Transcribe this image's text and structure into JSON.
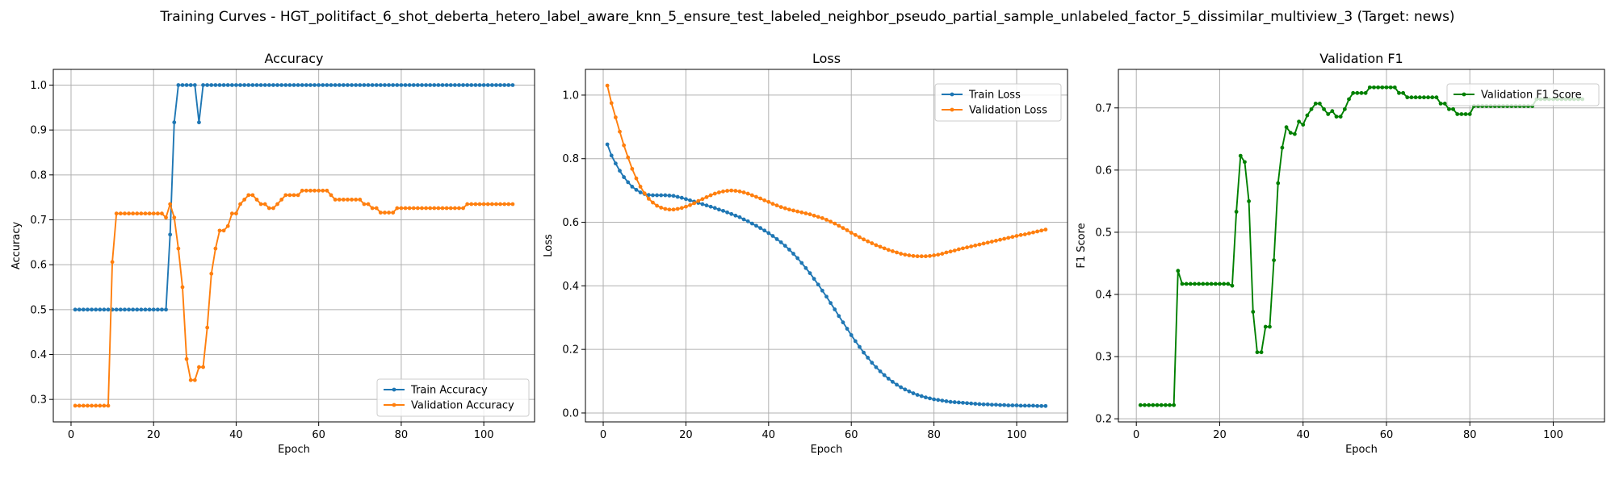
{
  "figure": {
    "title": "Training Curves - HGT_politifact_6_shot_deberta_hetero_label_aware_knn_5_ensure_test_labeled_neighbor_pseudo_partial_sample_unlabeled_factor_5_dissimilar_multiview_3 (Target: news)"
  },
  "chart_data": [
    {
      "type": "line",
      "title": "Accuracy",
      "xlabel": "Epoch",
      "ylabel": "Accuracy",
      "xlim": [
        -4.3,
        112.3
      ],
      "ylim": [
        0.25,
        1.035
      ],
      "xticks": [
        0,
        20,
        40,
        60,
        80,
        100
      ],
      "yticks": [
        0.3,
        0.4,
        0.5,
        0.6,
        0.7,
        0.8,
        0.9,
        1.0
      ],
      "ytick_labels": [
        "0.3",
        "0.4",
        "0.5",
        "0.6",
        "0.7",
        "0.8",
        "0.9",
        "1.0"
      ],
      "grid": true,
      "legend_position": "lower-right",
      "series": [
        {
          "name": "Train Accuracy",
          "color": "#1f77b4",
          "values": [
            0.5,
            0.5,
            0.5,
            0.5,
            0.5,
            0.5,
            0.5,
            0.5,
            0.5,
            0.5,
            0.5,
            0.5,
            0.5,
            0.5,
            0.5,
            0.5,
            0.5,
            0.5,
            0.5,
            0.5,
            0.5,
            0.5,
            0.5,
            0.667,
            0.917,
            1.0,
            1.0,
            1.0,
            1.0,
            1.0,
            0.917,
            1.0,
            1.0,
            1.0,
            1.0,
            1.0,
            1.0,
            1.0,
            1.0,
            1.0,
            1.0,
            1.0,
            1.0,
            1.0,
            1.0,
            1.0,
            1.0,
            1.0,
            1.0,
            1.0,
            1.0,
            1.0,
            1.0,
            1.0,
            1.0,
            1.0,
            1.0,
            1.0,
            1.0,
            1.0,
            1.0,
            1.0,
            1.0,
            1.0,
            1.0,
            1.0,
            1.0,
            1.0,
            1.0,
            1.0,
            1.0,
            1.0,
            1.0,
            1.0,
            1.0,
            1.0,
            1.0,
            1.0,
            1.0,
            1.0,
            1.0,
            1.0,
            1.0,
            1.0,
            1.0,
            1.0,
            1.0,
            1.0,
            1.0,
            1.0,
            1.0,
            1.0,
            1.0,
            1.0,
            1.0,
            1.0,
            1.0,
            1.0,
            1.0,
            1.0,
            1.0,
            1.0,
            1.0,
            1.0,
            1.0,
            1.0,
            1.0
          ]
        },
        {
          "name": "Validation Accuracy",
          "color": "#ff7f0e",
          "values": [
            0.286,
            0.286,
            0.286,
            0.286,
            0.286,
            0.286,
            0.286,
            0.286,
            0.286,
            0.606,
            0.714,
            0.714,
            0.714,
            0.714,
            0.714,
            0.714,
            0.714,
            0.714,
            0.714,
            0.714,
            0.714,
            0.714,
            0.705,
            0.735,
            0.705,
            0.636,
            0.55,
            0.39,
            0.343,
            0.343,
            0.372,
            0.372,
            0.46,
            0.58,
            0.636,
            0.676,
            0.676,
            0.686,
            0.714,
            0.714,
            0.735,
            0.745,
            0.755,
            0.755,
            0.745,
            0.735,
            0.735,
            0.726,
            0.726,
            0.735,
            0.745,
            0.755,
            0.755,
            0.755,
            0.755,
            0.765,
            0.765,
            0.765,
            0.765,
            0.765,
            0.765,
            0.765,
            0.755,
            0.745,
            0.745,
            0.745,
            0.745,
            0.745,
            0.745,
            0.745,
            0.735,
            0.735,
            0.726,
            0.726,
            0.716,
            0.716,
            0.716,
            0.716,
            0.726,
            0.726,
            0.726,
            0.726,
            0.726,
            0.726,
            0.726,
            0.726,
            0.726,
            0.726,
            0.726,
            0.726,
            0.726,
            0.726,
            0.726,
            0.726,
            0.726,
            0.735,
            0.735,
            0.735,
            0.735,
            0.735,
            0.735,
            0.735,
            0.735,
            0.735,
            0.735,
            0.735,
            0.735
          ]
        }
      ]
    },
    {
      "type": "line",
      "title": "Loss",
      "xlabel": "Epoch",
      "ylabel": "Loss",
      "xlim": [
        -4.3,
        112.3
      ],
      "ylim": [
        -0.028,
        1.081
      ],
      "xticks": [
        0,
        20,
        40,
        60,
        80,
        100
      ],
      "yticks": [
        0.0,
        0.2,
        0.4,
        0.6,
        0.8,
        1.0
      ],
      "ytick_labels": [
        "0.0",
        "0.2",
        "0.4",
        "0.6",
        "0.8",
        "1.0"
      ],
      "grid": true,
      "legend_position": "top-right",
      "series": [
        {
          "name": "Train Loss",
          "color": "#1f77b4",
          "values": [
            0.845,
            0.81,
            0.785,
            0.762,
            0.742,
            0.726,
            0.712,
            0.702,
            0.694,
            0.689,
            0.686,
            0.685,
            0.685,
            0.685,
            0.685,
            0.684,
            0.683,
            0.68,
            0.677,
            0.673,
            0.669,
            0.665,
            0.661,
            0.657,
            0.653,
            0.649,
            0.645,
            0.64,
            0.636,
            0.631,
            0.626,
            0.621,
            0.616,
            0.609,
            0.603,
            0.596,
            0.589,
            0.582,
            0.574,
            0.566,
            0.557,
            0.547,
            0.537,
            0.526,
            0.514,
            0.501,
            0.487,
            0.472,
            0.456,
            0.44,
            0.422,
            0.404,
            0.385,
            0.366,
            0.346,
            0.326,
            0.305,
            0.285,
            0.265,
            0.245,
            0.226,
            0.208,
            0.19,
            0.174,
            0.158,
            0.144,
            0.131,
            0.119,
            0.108,
            0.098,
            0.089,
            0.081,
            0.074,
            0.068,
            0.062,
            0.057,
            0.053,
            0.049,
            0.046,
            0.043,
            0.041,
            0.039,
            0.037,
            0.035,
            0.034,
            0.033,
            0.032,
            0.031,
            0.03,
            0.029,
            0.028,
            0.027,
            0.027,
            0.026,
            0.026,
            0.025,
            0.025,
            0.024,
            0.024,
            0.024,
            0.023,
            0.023,
            0.023,
            0.023,
            0.022,
            0.022,
            0.022
          ]
        },
        {
          "name": "Validation Loss",
          "color": "#ff7f0e",
          "values": [
            1.03,
            0.975,
            0.93,
            0.885,
            0.842,
            0.804,
            0.768,
            0.738,
            0.712,
            0.691,
            0.674,
            0.662,
            0.652,
            0.646,
            0.642,
            0.64,
            0.64,
            0.642,
            0.645,
            0.649,
            0.654,
            0.66,
            0.667,
            0.673,
            0.679,
            0.685,
            0.69,
            0.694,
            0.697,
            0.699,
            0.7,
            0.699,
            0.697,
            0.694,
            0.69,
            0.685,
            0.68,
            0.675,
            0.669,
            0.664,
            0.658,
            0.653,
            0.648,
            0.644,
            0.64,
            0.637,
            0.634,
            0.631,
            0.628,
            0.625,
            0.621,
            0.617,
            0.613,
            0.608,
            0.602,
            0.596,
            0.589,
            0.582,
            0.575,
            0.567,
            0.56,
            0.553,
            0.546,
            0.54,
            0.534,
            0.528,
            0.523,
            0.518,
            0.513,
            0.509,
            0.505,
            0.501,
            0.498,
            0.496,
            0.494,
            0.493,
            0.493,
            0.493,
            0.494,
            0.496,
            0.498,
            0.501,
            0.505,
            0.508,
            0.511,
            0.515,
            0.518,
            0.521,
            0.524,
            0.527,
            0.53,
            0.533,
            0.536,
            0.539,
            0.542,
            0.545,
            0.548,
            0.551,
            0.554,
            0.557,
            0.56,
            0.562,
            0.565,
            0.568,
            0.571,
            0.574,
            0.577
          ]
        }
      ]
    },
    {
      "type": "line",
      "title": "Validation F1",
      "xlabel": "Epoch",
      "ylabel": "F1 Score",
      "xlim": [
        -4.3,
        112.3
      ],
      "ylim": [
        0.195,
        0.762
      ],
      "xticks": [
        0,
        20,
        40,
        60,
        80,
        100
      ],
      "yticks": [
        0.2,
        0.3,
        0.4,
        0.5,
        0.6,
        0.7
      ],
      "ytick_labels": [
        "0.2",
        "0.3",
        "0.4",
        "0.5",
        "0.6",
        "0.7"
      ],
      "grid": true,
      "legend_position": "top-right",
      "series": [
        {
          "name": "Validation F1 Score",
          "color": "#008000",
          "values": [
            0.222,
            0.222,
            0.222,
            0.222,
            0.222,
            0.222,
            0.222,
            0.222,
            0.222,
            0.438,
            0.417,
            0.417,
            0.417,
            0.417,
            0.417,
            0.417,
            0.417,
            0.417,
            0.417,
            0.417,
            0.417,
            0.417,
            0.414,
            0.533,
            0.623,
            0.613,
            0.55,
            0.372,
            0.307,
            0.307,
            0.348,
            0.348,
            0.455,
            0.579,
            0.636,
            0.669,
            0.66,
            0.658,
            0.678,
            0.673,
            0.688,
            0.698,
            0.707,
            0.707,
            0.698,
            0.69,
            0.695,
            0.686,
            0.686,
            0.698,
            0.714,
            0.724,
            0.724,
            0.724,
            0.724,
            0.733,
            0.733,
            0.733,
            0.733,
            0.733,
            0.733,
            0.733,
            0.724,
            0.724,
            0.717,
            0.717,
            0.717,
            0.717,
            0.717,
            0.717,
            0.717,
            0.717,
            0.707,
            0.707,
            0.698,
            0.698,
            0.69,
            0.69,
            0.69,
            0.69,
            0.703,
            0.703,
            0.703,
            0.703,
            0.703,
            0.703,
            0.703,
            0.703,
            0.703,
            0.703,
            0.703,
            0.703,
            0.703,
            0.703,
            0.703,
            0.714,
            0.714,
            0.714,
            0.714,
            0.714,
            0.714,
            0.714,
            0.714,
            0.714,
            0.714,
            0.714,
            0.714
          ]
        }
      ]
    }
  ]
}
